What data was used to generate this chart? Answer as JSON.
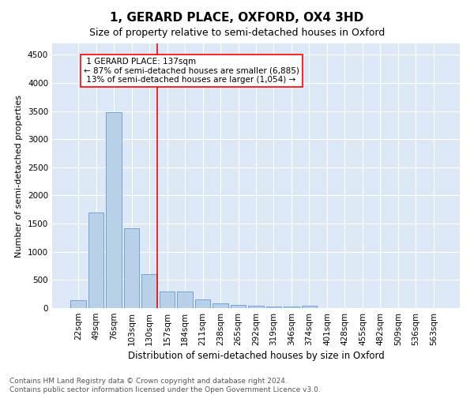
{
  "title": "1, GERARD PLACE, OXFORD, OX4 3HD",
  "subtitle": "Size of property relative to semi-detached houses in Oxford",
  "xlabel": "Distribution of semi-detached houses by size in Oxford",
  "ylabel": "Number of semi-detached properties",
  "footer": "Contains HM Land Registry data © Crown copyright and database right 2024.\nContains public sector information licensed under the Open Government Licence v3.0.",
  "bar_labels": [
    "22sqm",
    "49sqm",
    "76sqm",
    "103sqm",
    "130sqm",
    "157sqm",
    "184sqm",
    "211sqm",
    "238sqm",
    "265sqm",
    "292sqm",
    "319sqm",
    "346sqm",
    "374sqm",
    "401sqm",
    "428sqm",
    "455sqm",
    "482sqm",
    "509sqm",
    "536sqm",
    "563sqm"
  ],
  "bar_values": [
    140,
    1700,
    3480,
    1420,
    610,
    290,
    290,
    160,
    90,
    60,
    40,
    30,
    30,
    40,
    0,
    0,
    0,
    0,
    0,
    0,
    0
  ],
  "bar_color": "#b8d0e8",
  "bar_edge_color": "#6699cc",
  "property_label": "1 GERARD PLACE: 137sqm",
  "pct_smaller": 87,
  "count_smaller": "6,885",
  "pct_larger": 13,
  "count_larger": "1,054",
  "vline_x": 4.45,
  "ylim": [
    0,
    4700
  ],
  "yticks": [
    0,
    500,
    1000,
    1500,
    2000,
    2500,
    3000,
    3500,
    4000,
    4500
  ],
  "background_color": "#dce8f5",
  "grid_color": "#ffffff",
  "title_fontsize": 11,
  "subtitle_fontsize": 9,
  "xlabel_fontsize": 8.5,
  "ylabel_fontsize": 8,
  "tick_fontsize": 7.5,
  "annotation_fontsize": 7.5,
  "footer_fontsize": 6.5
}
